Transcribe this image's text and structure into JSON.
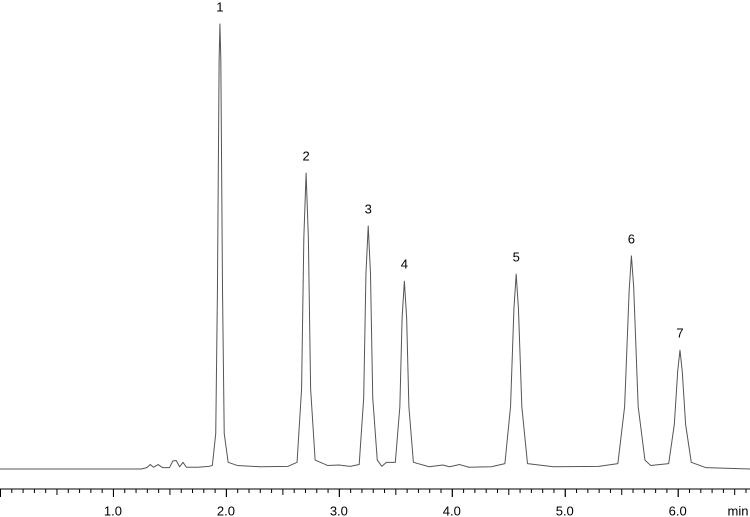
{
  "chart_data": {
    "type": "line",
    "xlabel": "min",
    "xlim": [
      0,
      6.64
    ],
    "ylim": [
      0,
      100
    ],
    "xticks": [
      {
        "value": 1,
        "label": "1.0"
      },
      {
        "value": 2,
        "label": "2.0"
      },
      {
        "value": 3,
        "label": "3.0"
      },
      {
        "value": 4,
        "label": "4.0"
      },
      {
        "value": 5,
        "label": "5.0"
      },
      {
        "value": 6,
        "label": "6.0"
      }
    ],
    "xminor_step": 0.1,
    "color": "#555555",
    "x": [
      0,
      1.25,
      1.3,
      1.33,
      1.36,
      1.4,
      1.44,
      1.5,
      1.53,
      1.56,
      1.59,
      1.62,
      1.65,
      1.75,
      1.85,
      1.88,
      1.91,
      1.925,
      1.94,
      1.947,
      1.955,
      1.97,
      1.985,
      2.02,
      2.1,
      2.3,
      2.55,
      2.63,
      2.67,
      2.69,
      2.71,
      2.73,
      2.75,
      2.79,
      2.9,
      3.0,
      3.1,
      3.18,
      3.22,
      3.24,
      3.26,
      3.28,
      3.3,
      3.34,
      3.38,
      3.42,
      3.5,
      3.54,
      3.56,
      3.58,
      3.6,
      3.62,
      3.66,
      3.8,
      3.92,
      3.98,
      4.07,
      4.15,
      4.35,
      4.47,
      4.52,
      4.55,
      4.57,
      4.59,
      4.62,
      4.67,
      4.9,
      5.3,
      5.47,
      5.53,
      5.57,
      5.59,
      5.61,
      5.65,
      5.71,
      5.76,
      5.92,
      5.97,
      6.0,
      6.02,
      6.04,
      6.07,
      6.12,
      6.25,
      6.64
    ],
    "values": [
      0,
      0,
      0.3,
      1,
      0.4,
      1,
      0.3,
      0.3,
      1.8,
      1.9,
      0.5,
      1.5,
      0.4,
      0.4,
      0.6,
      0.8,
      8,
      40,
      92,
      100,
      92,
      40,
      8,
      1.5,
      0.8,
      0.5,
      0.6,
      1.5,
      18,
      52,
      66.5,
      52,
      18,
      2,
      0.8,
      0.9,
      0.6,
      1,
      16,
      44,
      54.6,
      44,
      16,
      2,
      0.6,
      1.5,
      1.5,
      14,
      34,
      42.2,
      34,
      14,
      1.5,
      0.5,
      0.9,
      0.5,
      1.0,
      0.4,
      0.5,
      1.2,
      14,
      36,
      43.8,
      36,
      14,
      1.2,
      0.5,
      0.6,
      1.2,
      14,
      40,
      47.9,
      41,
      14,
      2,
      0.8,
      1.2,
      10,
      22,
      26.7,
      22,
      10,
      1.5,
      0.3,
      0
    ],
    "peaks": [
      {
        "label": "1",
        "x": 1.947,
        "y": 100
      },
      {
        "label": "2",
        "x": 2.71,
        "y": 66.5
      },
      {
        "label": "3",
        "x": 3.26,
        "y": 54.6
      },
      {
        "label": "4",
        "x": 3.58,
        "y": 42.2
      },
      {
        "label": "5",
        "x": 4.57,
        "y": 43.8
      },
      {
        "label": "6",
        "x": 5.59,
        "y": 47.9
      },
      {
        "label": "7",
        "x": 6.02,
        "y": 26.7
      }
    ]
  }
}
